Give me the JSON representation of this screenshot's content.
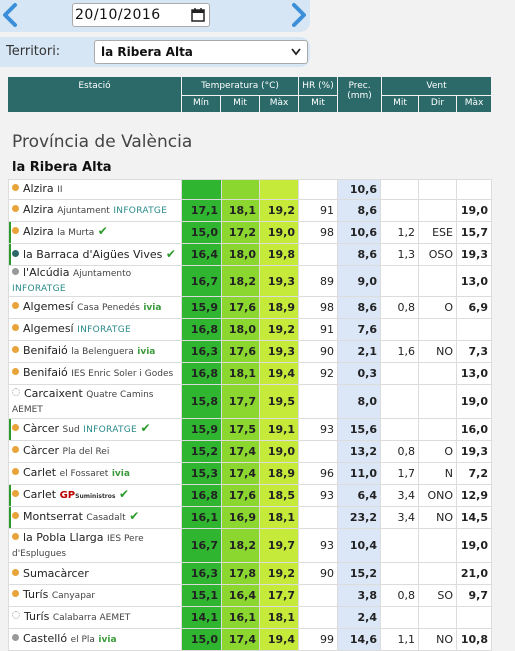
{
  "toolbar": {
    "date": "20/10/2016"
  },
  "filter": {
    "label": "Territori:",
    "value": "la Ribera Alta"
  },
  "headers": {
    "station": "Estació",
    "temp": "Temperatura (°C)",
    "hr": "HR (%)",
    "prec": "Prec. (mm)",
    "wind": "Vent",
    "min": "Mín",
    "mit": "Mit",
    "max": "Màx",
    "hr_mit": "Mit",
    "w_mit": "Mit",
    "w_dir": "Dir",
    "w_max": "Màx"
  },
  "province": "Província de València",
  "region": "la Ribera Alta",
  "colors": {
    "dot_orange": "#e8a33a",
    "dot_gray": "#999999",
    "dot_teal": "#2c6a6a"
  },
  "rows": [
    {
      "name": "Alzira",
      "sub": "II",
      "dot": "orange",
      "min": "",
      "mit": "",
      "max": "",
      "hr": "",
      "prec": "10,6",
      "wmit": "",
      "wdir": "",
      "wmax": "",
      "h": 20
    },
    {
      "name": "Alzira",
      "sub": "Ajuntament",
      "tag": "INFORATGE",
      "dot": "orange",
      "min": "17,1",
      "mit": "18,1",
      "max": "19,2",
      "hr": "91",
      "prec": "8,6",
      "wmit": "",
      "wdir": "",
      "wmax": "19,0",
      "h": 22
    },
    {
      "name": "Alzira",
      "sub": "la Murta",
      "check": true,
      "edge": true,
      "dot": "orange",
      "min": "15,0",
      "mit": "17,2",
      "max": "19,0",
      "hr": "98",
      "prec": "10,6",
      "wmit": "1,2",
      "wdir": "ESE",
      "wmax": "15,7",
      "h": 22
    },
    {
      "name": "la Barraca d'Aigües Vives",
      "check": true,
      "edge": true,
      "dot": "teal",
      "min": "16,4",
      "mit": "18,0",
      "max": "19,8",
      "hr": "",
      "prec": "8,6",
      "wmit": "1,3",
      "wdir": "OSO",
      "wmax": "19,3",
      "h": 22
    },
    {
      "name": "l'Alcúdia",
      "sub": "Ajuntamento",
      "tag": "INFORATGE",
      "dot": "gray",
      "min": "16,7",
      "mit": "18,2",
      "max": "19,3",
      "hr": "89",
      "prec": "9,0",
      "wmit": "",
      "wdir": "",
      "wmax": "13,0",
      "h": 22
    },
    {
      "name": "Algemesí",
      "sub": "Casa Penedés",
      "ivia": "ivia",
      "dot": "orange",
      "min": "15,9",
      "mit": "17,6",
      "max": "18,9",
      "hr": "98",
      "prec": "8,6",
      "wmit": "0,8",
      "wdir": "O",
      "wmax": "6,9",
      "h": 22
    },
    {
      "name": "Algemesí",
      "tag": "INFORATGE",
      "dot": "orange",
      "min": "16,8",
      "mit": "18,0",
      "max": "19,2",
      "hr": "91",
      "prec": "7,6",
      "wmit": "",
      "wdir": "",
      "wmax": "",
      "h": 22
    },
    {
      "name": "Benifaió",
      "sub": "la Belenguera",
      "ivia": "ivia",
      "dot": "orange",
      "min": "16,3",
      "mit": "17,6",
      "max": "19,3",
      "hr": "90",
      "prec": "2,1",
      "wmit": "1,6",
      "wdir": "NO",
      "wmax": "7,3",
      "h": 22
    },
    {
      "name": "Benifaió",
      "sub": "IES Enric Soler i Godes",
      "dot": "orange",
      "min": "16,8",
      "mit": "18,1",
      "max": "19,4",
      "hr": "92",
      "prec": "0,3",
      "wmit": "",
      "wdir": "",
      "wmax": "13,0",
      "h": 22
    },
    {
      "name": "Carcaixent",
      "sub": "Quatre Camins AEMET",
      "dot": "sun",
      "min": "15,8",
      "mit": "17,7",
      "max": "19,5",
      "hr": "",
      "prec": "8,0",
      "wmit": "",
      "wdir": "",
      "wmax": "19,0",
      "h": 34
    },
    {
      "name": "Càrcer",
      "sub": "Sud",
      "tag": "INFORATGE",
      "check": true,
      "edge": true,
      "dot": "orange",
      "min": "15,9",
      "mit": "17,5",
      "max": "19,1",
      "hr": "93",
      "prec": "15,6",
      "wmit": "",
      "wdir": "",
      "wmax": "16,0",
      "h": 22
    },
    {
      "name": "Càrcer",
      "sub": "Pla del Rei",
      "dot": "orange",
      "min": "15,2",
      "mit": "17,4",
      "max": "19,0",
      "hr": "",
      "prec": "13,2",
      "wmit": "0,8",
      "wdir": "O",
      "wmax": "19,3",
      "h": 22
    },
    {
      "name": "Carlet",
      "sub": "el Fossaret",
      "ivia": "ivia",
      "dot": "orange",
      "min": "15,3",
      "mit": "17,4",
      "max": "18,9",
      "hr": "96",
      "prec": "11,0",
      "wmit": "1,7",
      "wdir": "N",
      "wmax": "7,2",
      "h": 22
    },
    {
      "name": "Carlet",
      "gp": true,
      "check": true,
      "edge": true,
      "dot": "orange",
      "min": "16,8",
      "mit": "17,6",
      "max": "18,5",
      "hr": "93",
      "prec": "6,4",
      "wmit": "3,4",
      "wdir": "ONO",
      "wmax": "12,9",
      "h": 22
    },
    {
      "name": "Montserrat",
      "sub": "Casadalt",
      "check": true,
      "edge": true,
      "dot": "orange",
      "min": "16,1",
      "mit": "16,9",
      "max": "18,1",
      "hr": "",
      "prec": "23,2",
      "wmit": "3,4",
      "wdir": "NO",
      "wmax": "14,5",
      "h": 22
    },
    {
      "name": "la Pobla Llarga",
      "sub": "IES Pere d'Esplugues",
      "dot": "orange",
      "min": "16,7",
      "mit": "18,2",
      "max": "19,7",
      "hr": "93",
      "prec": "10,4",
      "wmit": "",
      "wdir": "",
      "wmax": "19,0",
      "h": 34
    },
    {
      "name": "Sumacàrcer",
      "dot": "orange",
      "min": "16,3",
      "mit": "17,8",
      "max": "19,2",
      "hr": "90",
      "prec": "15,2",
      "wmit": "",
      "wdir": "",
      "wmax": "21,0",
      "h": 22
    },
    {
      "name": "Turís",
      "sub": "Canyapar",
      "dot": "orange",
      "min": "15,1",
      "mit": "16,4",
      "max": "17,7",
      "hr": "",
      "prec": "3,8",
      "wmit": "0,8",
      "wdir": "SO",
      "wmax": "9,7",
      "h": 22
    },
    {
      "name": "Turís",
      "sub": "Calabarra AEMET",
      "dot": "sun",
      "min": "14,1",
      "mit": "16,1",
      "max": "18,1",
      "hr": "",
      "prec": "2,4",
      "wmit": "",
      "wdir": "",
      "wmax": "",
      "h": 22
    },
    {
      "name": "Castelló",
      "sub": "el Pla",
      "ivia": "ivia",
      "dot": "gray",
      "min": "15,0",
      "mit": "17,4",
      "max": "19,4",
      "hr": "99",
      "prec": "14,6",
      "wmit": "1,1",
      "wdir": "NO",
      "wmax": "10,8",
      "h": 22
    }
  ]
}
